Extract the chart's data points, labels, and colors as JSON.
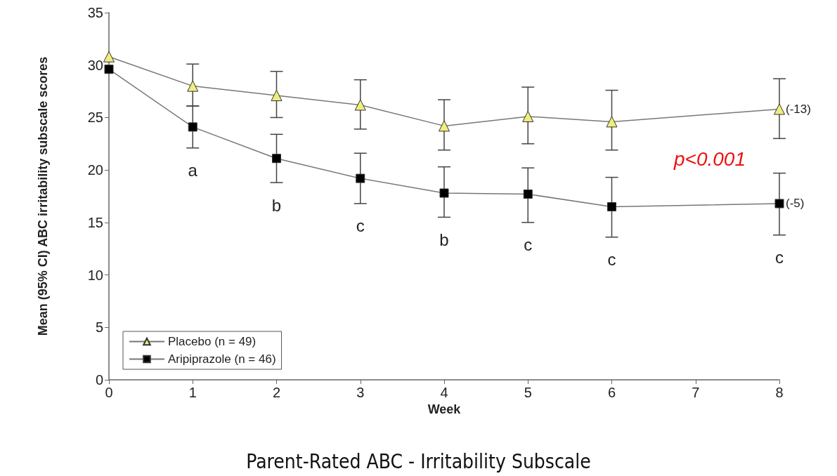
{
  "chart_data": {
    "type": "line",
    "title": "Parent-Rated ABC - Irritability Subscale",
    "xlabel": "Week",
    "ylabel": "Mean (95% CI) ABC irritability subscale scores",
    "x": [
      0,
      1,
      2,
      3,
      4,
      5,
      6,
      8
    ],
    "series": [
      {
        "name": "Placebo (n = 49)",
        "color": "#eeee80",
        "marker": "triangle",
        "values": [
          30.8,
          28.0,
          27.1,
          26.2,
          24.2,
          25.1,
          24.6,
          25.8
        ],
        "errors": [
          null,
          [
            26.1,
            30.1
          ],
          [
            25.0,
            29.4
          ],
          [
            23.9,
            28.6
          ],
          [
            21.9,
            26.7
          ],
          [
            22.5,
            27.9
          ],
          [
            21.9,
            27.6
          ],
          [
            23.0,
            28.7
          ]
        ]
      },
      {
        "name": "Aripiprazole (n = 46)",
        "color": "#000000",
        "marker": "square",
        "values": [
          29.6,
          24.1,
          21.1,
          19.2,
          17.8,
          17.7,
          16.5,
          16.8
        ],
        "errors": [
          null,
          [
            22.1,
            26.1
          ],
          [
            18.8,
            23.4
          ],
          [
            16.8,
            21.6
          ],
          [
            15.5,
            20.3
          ],
          [
            15.0,
            20.2
          ],
          [
            13.6,
            19.3
          ],
          [
            13.8,
            19.7
          ]
        ]
      }
    ],
    "xlim": [
      0,
      8
    ],
    "xticks": [
      0,
      1,
      2,
      3,
      4,
      5,
      6,
      7,
      8
    ],
    "ylim": [
      0,
      35
    ],
    "yticks": [
      0,
      5,
      10,
      15,
      20,
      25,
      30,
      35
    ],
    "grid": false,
    "legend": "bottom left",
    "line_style": "solid",
    "annotations": [
      {
        "text": "a",
        "x": 1,
        "y": 22.1
      },
      {
        "text": "b",
        "x": 2,
        "y": 18.8
      },
      {
        "text": "c",
        "x": 3,
        "y": 16.8
      },
      {
        "text": "b",
        "x": 4,
        "y": 15.5
      },
      {
        "text": "c",
        "x": 5,
        "y": 15.0
      },
      {
        "text": "c",
        "x": 6,
        "y": 13.6
      },
      {
        "text": "c",
        "x": 8,
        "y": 13.8
      },
      {
        "text": "(-13)",
        "x": 8,
        "y": 25.8
      },
      {
        "text": "(-5)",
        "x": 8,
        "y": 16.8
      },
      "p<0.001"
    ]
  }
}
